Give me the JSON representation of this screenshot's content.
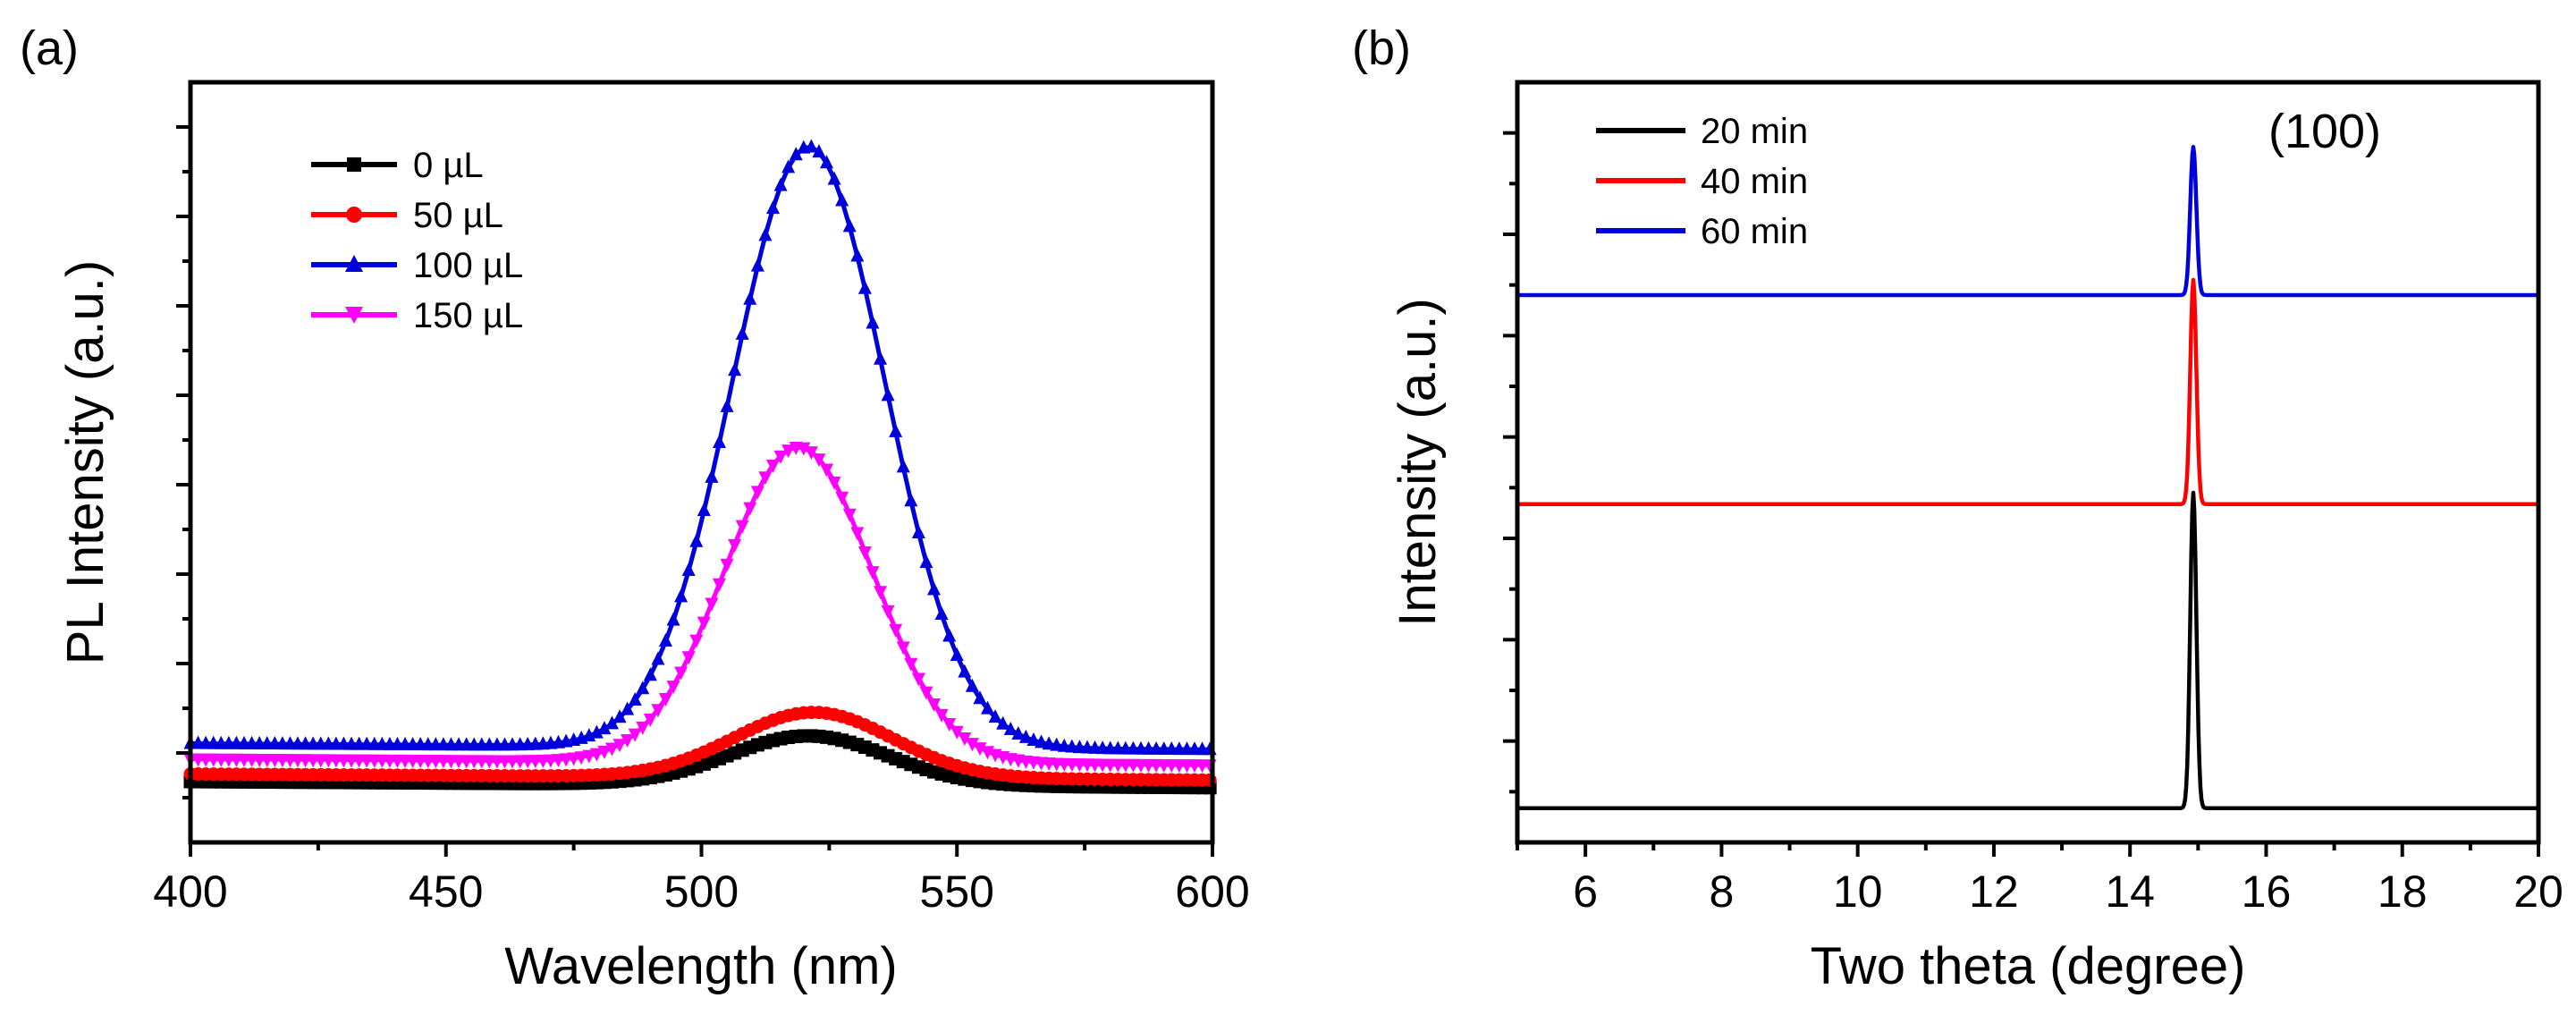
{
  "chart_data": [
    {
      "panel": "(a)",
      "type": "line",
      "title": "",
      "xlabel": "Wavelength (nm)",
      "ylabel": "PL Intensity (a.u.)",
      "xlim": [
        400,
        600
      ],
      "ylim": [
        0,
        100
      ],
      "xticks": [
        400,
        450,
        500,
        550,
        600
      ],
      "x_tick_labels": [
        "400",
        "450",
        "500",
        "550",
        "600"
      ],
      "y_tick_labels_shown": false,
      "grid": false,
      "legend_position": "top-left",
      "series": [
        {
          "name": "0 µL",
          "color": "#000000",
          "marker": "square",
          "baseline": 8.0,
          "slope": -0.004,
          "peak_x": 521,
          "peak_height": 6.5,
          "peak_width": 15.5
        },
        {
          "name": "50 µL",
          "color": "#ff0000",
          "marker": "circle",
          "baseline": 9.0,
          "slope": -0.004,
          "peak_x": 522,
          "peak_height": 8.6,
          "peak_width": 15.5
        },
        {
          "name": "100 µL",
          "color": "#0000dd",
          "marker": "triangle-up",
          "baseline": 13.0,
          "slope": -0.004,
          "peak_x": 521,
          "peak_height": 79.0,
          "peak_width": 15.0
        },
        {
          "name": "150 µL",
          "color": "#ff00ff",
          "marker": "triangle-down",
          "baseline": 11.0,
          "slope": -0.004,
          "peak_x": 519,
          "peak_height": 41.5,
          "peak_width": 14.5
        }
      ]
    },
    {
      "panel": "(b)",
      "type": "line",
      "title": "",
      "xlabel": "Two theta (degree)",
      "ylabel": "Intensity (a.u.)",
      "xlim": [
        5,
        20
      ],
      "ylim": [
        0,
        100
      ],
      "xticks": [
        6,
        8,
        10,
        12,
        14,
        16,
        18,
        20
      ],
      "x_tick_labels": [
        "6",
        "8",
        "10",
        "12",
        "14",
        "16",
        "18",
        "20"
      ],
      "y_tick_labels_shown": false,
      "grid": false,
      "legend_position": "top-left",
      "annotation": "(100)",
      "series": [
        {
          "name": "20 min",
          "color": "#000000",
          "baseline": 4.5,
          "peak_x": 14.93,
          "peak_height": 41.5,
          "peak_width": 0.045
        },
        {
          "name": "40 min",
          "color": "#ff0000",
          "baseline": 44.5,
          "peak_x": 14.93,
          "peak_height": 29.5,
          "peak_width": 0.045
        },
        {
          "name": "60 min",
          "color": "#0000dd",
          "baseline": 72.0,
          "peak_x": 14.93,
          "peak_height": 19.5,
          "peak_width": 0.045
        }
      ]
    }
  ]
}
